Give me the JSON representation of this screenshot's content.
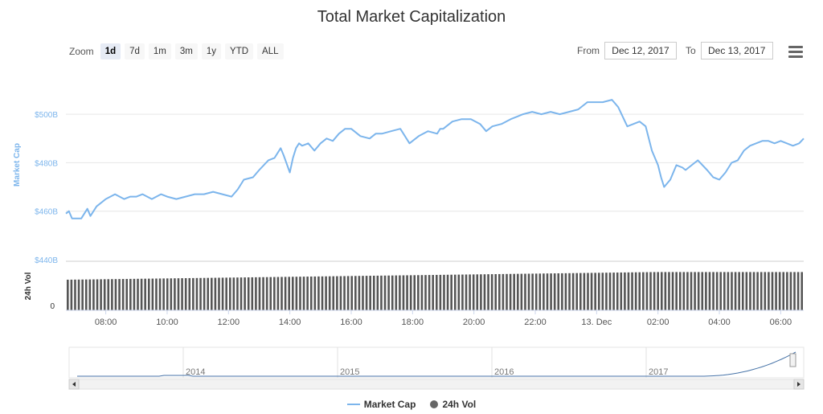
{
  "title": "Total Market Capitalization",
  "zoom": {
    "label": "Zoom",
    "buttons": [
      "1d",
      "7d",
      "1m",
      "3m",
      "1y",
      "YTD",
      "ALL"
    ],
    "active": "1d"
  },
  "range": {
    "from_label": "From",
    "from_value": "Dec 12, 2017",
    "to_label": "To",
    "to_value": "Dec 13, 2017"
  },
  "menu_icon": "hamburger-menu-icon",
  "legend": [
    "Market Cap",
    "24h Vol"
  ],
  "colors": {
    "market_cap": "#7cb5ec",
    "volume": "#555555",
    "navigator": "#4572a7",
    "grid": "#e6e6e6"
  },
  "chart_data": {
    "type": "line",
    "title": "Total Market Capitalization",
    "x_tick_labels": [
      "08:00",
      "10:00",
      "12:00",
      "14:00",
      "16:00",
      "18:00",
      "20:00",
      "22:00",
      "13. Dec",
      "02:00",
      "04:00",
      "06:00"
    ],
    "x_range_hours": [
      6.7,
      30.75
    ],
    "series": [
      {
        "name": "Market Cap",
        "ylabel": "Market Cap",
        "y_tick_labels": [
          "$440B",
          "$460B",
          "$480B",
          "$500B"
        ],
        "ylim": [
          440,
          510
        ],
        "x_hours": [
          6.7,
          6.8,
          6.9,
          7.0,
          7.2,
          7.4,
          7.5,
          7.7,
          7.8,
          8.0,
          8.3,
          8.6,
          8.8,
          9.0,
          9.2,
          9.5,
          9.8,
          10.0,
          10.3,
          10.6,
          10.9,
          11.2,
          11.5,
          11.8,
          12.1,
          12.3,
          12.5,
          12.8,
          13.0,
          13.3,
          13.5,
          13.7,
          13.8,
          14.0,
          14.1,
          14.2,
          14.3,
          14.4,
          14.6,
          14.8,
          15.0,
          15.2,
          15.4,
          15.6,
          15.8,
          16.0,
          16.3,
          16.6,
          16.8,
          17.0,
          17.3,
          17.6,
          17.9,
          18.2,
          18.5,
          18.8,
          18.9,
          19.0,
          19.3,
          19.6,
          19.9,
          20.2,
          20.4,
          20.6,
          20.9,
          21.2,
          21.4,
          21.6,
          21.9,
          22.2,
          22.5,
          22.8,
          23.1,
          23.4,
          23.7,
          23.9,
          24.2,
          24.5,
          24.7,
          25.0,
          25.2,
          25.4,
          25.6,
          25.8,
          26.0,
          26.1,
          26.2,
          26.4,
          26.6,
          26.8,
          26.9,
          27.1,
          27.3,
          27.6,
          27.8,
          28.0,
          28.2,
          28.4,
          28.6,
          28.8,
          29.0,
          29.2,
          29.4,
          29.6,
          29.8,
          30.0,
          30.2,
          30.4,
          30.6,
          30.75
        ],
        "values": [
          459,
          460,
          457,
          457,
          457,
          461,
          458,
          462,
          463,
          465,
          467,
          465,
          466,
          466,
          467,
          465,
          467,
          466,
          465,
          466,
          467,
          467,
          468,
          467,
          466,
          469,
          473,
          474,
          477,
          481,
          482,
          486,
          483,
          476,
          482,
          486,
          488,
          487,
          488,
          485,
          488,
          490,
          489,
          492,
          494,
          494,
          491,
          490,
          492,
          492,
          493,
          494,
          488,
          491,
          493,
          492,
          494,
          494,
          497,
          498,
          498,
          496,
          493,
          495,
          496,
          498,
          499,
          500,
          501,
          500,
          501,
          500,
          501,
          502,
          505,
          505,
          505,
          506,
          503,
          495,
          496,
          497,
          495,
          485,
          479,
          474,
          470,
          473,
          479,
          478,
          477,
          479,
          481,
          477,
          474,
          473,
          476,
          480,
          481,
          485,
          487,
          488,
          489,
          489,
          488,
          489,
          488,
          487,
          488,
          490
        ]
      },
      {
        "name": "24h Vol",
        "ylabel": "24h Vol",
        "y_tick_labels": [
          "0"
        ],
        "type": "bar",
        "start_fraction": 0.8,
        "end_fraction": 1.0
      }
    ],
    "navigator": {
      "tick_labels": [
        "2014",
        "2015",
        "2016",
        "2017"
      ]
    }
  }
}
